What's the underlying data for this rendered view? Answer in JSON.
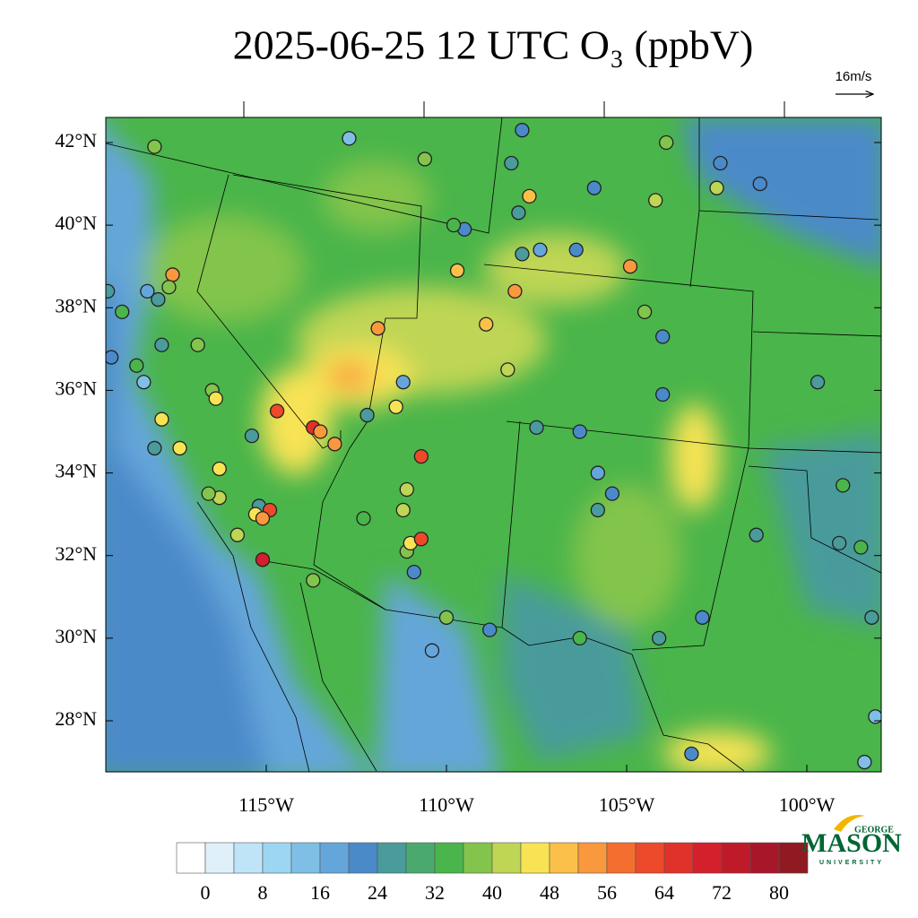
{
  "title": "2025-06-25 12 UTC O₃ (ppbV)",
  "map": {
    "vector_reference": "16m/s",
    "lat_ticks": [
      {
        "value": 42,
        "label": "42°N"
      },
      {
        "value": 40,
        "label": "40°N"
      },
      {
        "value": 38,
        "label": "38°N"
      },
      {
        "value": 36,
        "label": "36°N"
      },
      {
        "value": 34,
        "label": "34°N"
      },
      {
        "value": 32,
        "label": "32°N"
      },
      {
        "value": 30,
        "label": "30°N"
      },
      {
        "value": 28,
        "label": "28°N"
      }
    ],
    "lon_ticks": [
      {
        "value": -115,
        "label": "115°W"
      },
      {
        "value": -110,
        "label": "110°W"
      },
      {
        "value": -105,
        "label": "105°W"
      },
      {
        "value": -100,
        "label": "100°W"
      }
    ],
    "stations": [
      {
        "lon": -118.1,
        "lat": 41.9,
        "o3": 36
      },
      {
        "lon": -112.7,
        "lat": 42.1,
        "o3": 14
      },
      {
        "lon": -110.6,
        "lat": 41.6,
        "o3": 38
      },
      {
        "lon": -107.9,
        "lat": 42.3,
        "o3": 22
      },
      {
        "lon": -108.2,
        "lat": 41.5,
        "o3": 24
      },
      {
        "lon": -107.7,
        "lat": 40.7,
        "o3": 48
      },
      {
        "lon": -108.0,
        "lat": 40.3,
        "o3": 24
      },
      {
        "lon": -105.9,
        "lat": 40.9,
        "o3": 22
      },
      {
        "lon": -103.9,
        "lat": 42.0,
        "o3": 36
      },
      {
        "lon": -102.4,
        "lat": 41.5,
        "o3": 22
      },
      {
        "lon": -101.3,
        "lat": 41.0,
        "o3": 20
      },
      {
        "lon": -102.5,
        "lat": 40.9,
        "o3": 40
      },
      {
        "lon": -104.2,
        "lat": 40.6,
        "o3": 40
      },
      {
        "lon": -104.9,
        "lat": 39.0,
        "o3": 52
      },
      {
        "lon": -107.9,
        "lat": 39.3,
        "o3": 24
      },
      {
        "lon": -107.4,
        "lat": 39.4,
        "o3": 16
      },
      {
        "lon": -106.4,
        "lat": 39.4,
        "o3": 22
      },
      {
        "lon": -109.5,
        "lat": 39.9,
        "o3": 22
      },
      {
        "lon": -109.7,
        "lat": 38.9,
        "o3": 48
      },
      {
        "lon": -109.8,
        "lat": 40.0,
        "o3": 32
      },
      {
        "lon": -117.6,
        "lat": 38.8,
        "o3": 52
      },
      {
        "lon": -117.7,
        "lat": 38.5,
        "o3": 38
      },
      {
        "lon": -118.0,
        "lat": 38.2,
        "o3": 24
      },
      {
        "lon": -118.3,
        "lat": 38.4,
        "o3": 16
      },
      {
        "lon": -119.4,
        "lat": 38.4,
        "o3": 24
      },
      {
        "lon": -119.0,
        "lat": 37.9,
        "o3": 32
      },
      {
        "lon": -119.3,
        "lat": 36.8,
        "o3": 22
      },
      {
        "lon": -118.6,
        "lat": 36.6,
        "o3": 32
      },
      {
        "lon": -118.4,
        "lat": 36.2,
        "o3": 14
      },
      {
        "lon": -117.9,
        "lat": 37.1,
        "o3": 24
      },
      {
        "lon": -116.9,
        "lat": 37.1,
        "o3": 38
      },
      {
        "lon": -116.5,
        "lat": 36.0,
        "o3": 38
      },
      {
        "lon": -116.4,
        "lat": 35.8,
        "o3": 46
      },
      {
        "lon": -114.7,
        "lat": 35.5,
        "o3": 62
      },
      {
        "lon": -113.7,
        "lat": 35.1,
        "o3": 66
      },
      {
        "lon": -113.5,
        "lat": 35.0,
        "o3": 54
      },
      {
        "lon": -113.1,
        "lat": 34.7,
        "o3": 54
      },
      {
        "lon": -115.4,
        "lat": 34.9,
        "o3": 24
      },
      {
        "lon": -112.2,
        "lat": 35.4,
        "o3": 24
      },
      {
        "lon": -111.2,
        "lat": 36.2,
        "o3": 16
      },
      {
        "lon": -111.4,
        "lat": 35.6,
        "o3": 44
      },
      {
        "lon": -110.7,
        "lat": 34.4,
        "o3": 62
      },
      {
        "lon": -111.9,
        "lat": 37.5,
        "o3": 52
      },
      {
        "lon": -108.9,
        "lat": 37.6,
        "o3": 48
      },
      {
        "lon": -108.1,
        "lat": 38.4,
        "o3": 54
      },
      {
        "lon": -108.3,
        "lat": 36.5,
        "o3": 40
      },
      {
        "lon": -107.5,
        "lat": 35.1,
        "o3": 24
      },
      {
        "lon": -106.3,
        "lat": 35.0,
        "o3": 22
      },
      {
        "lon": -105.8,
        "lat": 34.0,
        "o3": 16
      },
      {
        "lon": -104.0,
        "lat": 37.3,
        "o3": 22
      },
      {
        "lon": -104.5,
        "lat": 37.9,
        "o3": 36
      },
      {
        "lon": -104.0,
        "lat": 35.9,
        "o3": 22
      },
      {
        "lon": -99.7,
        "lat": 36.2,
        "o3": 24
      },
      {
        "lon": -99.0,
        "lat": 33.7,
        "o3": 32
      },
      {
        "lon": -99.1,
        "lat": 32.3,
        "o3": 24
      },
      {
        "lon": -98.5,
        "lat": 32.2,
        "o3": 32
      },
      {
        "lon": -101.4,
        "lat": 32.5,
        "o3": 24
      },
      {
        "lon": -102.9,
        "lat": 30.5,
        "o3": 22
      },
      {
        "lon": -104.1,
        "lat": 30.0,
        "o3": 24
      },
      {
        "lon": -106.3,
        "lat": 30.0,
        "o3": 32
      },
      {
        "lon": -108.8,
        "lat": 30.2,
        "o3": 20
      },
      {
        "lon": -110.4,
        "lat": 29.7,
        "o3": 16
      },
      {
        "lon": -110.0,
        "lat": 30.5,
        "o3": 36
      },
      {
        "lon": -110.9,
        "lat": 31.6,
        "o3": 22
      },
      {
        "lon": -111.1,
        "lat": 32.1,
        "o3": 38
      },
      {
        "lon": -111.0,
        "lat": 32.3,
        "o3": 46
      },
      {
        "lon": -110.7,
        "lat": 32.4,
        "o3": 62
      },
      {
        "lon": -111.2,
        "lat": 33.1,
        "o3": 40
      },
      {
        "lon": -111.1,
        "lat": 33.6,
        "o3": 40
      },
      {
        "lon": -116.3,
        "lat": 34.1,
        "o3": 46
      },
      {
        "lon": -116.3,
        "lat": 33.4,
        "o3": 40
      },
      {
        "lon": -116.6,
        "lat": 33.5,
        "o3": 36
      },
      {
        "lon": -115.2,
        "lat": 33.2,
        "o3": 24
      },
      {
        "lon": -114.9,
        "lat": 33.1,
        "o3": 62
      },
      {
        "lon": -115.3,
        "lat": 33.0,
        "o3": 46
      },
      {
        "lon": -115.1,
        "lat": 32.9,
        "o3": 52
      },
      {
        "lon": -115.8,
        "lat": 32.5,
        "o3": 40
      },
      {
        "lon": -115.1,
        "lat": 31.9,
        "o3": 70
      },
      {
        "lon": -113.7,
        "lat": 31.4,
        "o3": 36
      },
      {
        "lon": -112.3,
        "lat": 32.9,
        "o3": 32
      },
      {
        "lon": -117.4,
        "lat": 34.6,
        "o3": 44
      },
      {
        "lon": -117.9,
        "lat": 35.3,
        "o3": 44
      },
      {
        "lon": -118.1,
        "lat": 34.6,
        "o3": 24
      },
      {
        "lon": -98.2,
        "lat": 30.5,
        "o3": 24
      },
      {
        "lon": -98.1,
        "lat": 28.1,
        "o3": 14
      },
      {
        "lon": -98.4,
        "lat": 27.0,
        "o3": 14
      },
      {
        "lon": -103.2,
        "lat": 27.2,
        "o3": 22
      },
      {
        "lon": -105.8,
        "lat": 33.1,
        "o3": 24
      },
      {
        "lon": -105.4,
        "lat": 33.5,
        "o3": 22
      }
    ]
  },
  "colorbar": {
    "levels": [
      0,
      4,
      8,
      12,
      16,
      20,
      24,
      28,
      32,
      36,
      40,
      44,
      48,
      52,
      56,
      60,
      64,
      68,
      72,
      76,
      80
    ],
    "colors": [
      "#ffffff",
      "#dff0fa",
      "#bfe4f7",
      "#9dd6f3",
      "#7fbfe6",
      "#65a6da",
      "#4b8ac9",
      "#4a9b9b",
      "#4aaa6e",
      "#4ab54a",
      "#83c44c",
      "#bfd554",
      "#f8e354",
      "#fbc04a",
      "#f9983d",
      "#f46f2f",
      "#ec4a2b",
      "#e0312b",
      "#d41f2d",
      "#be1a2a",
      "#a8162a",
      "#8f1a22"
    ],
    "ticks": [
      0,
      8,
      16,
      24,
      32,
      40,
      48,
      56,
      64,
      72,
      80
    ]
  },
  "logo": {
    "top": "GEORGE",
    "main": "MASON",
    "bottom": "UNIVERSITY"
  }
}
